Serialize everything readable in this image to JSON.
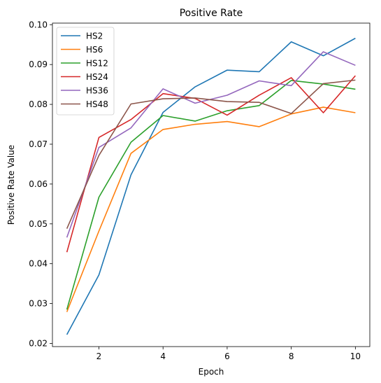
{
  "chart_data": {
    "type": "line",
    "title": "Positive Rate",
    "xlabel": "Epoch",
    "ylabel": "Positive Rate Value",
    "x": [
      1,
      2,
      3,
      4,
      5,
      6,
      7,
      8,
      9,
      10
    ],
    "xlim": [
      0.55,
      10.45
    ],
    "ylim": [
      0.0192,
      0.1004
    ],
    "xticks": [
      2,
      4,
      6,
      8,
      10
    ],
    "yticks": [
      0.02,
      0.03,
      0.04,
      0.05,
      0.06,
      0.07,
      0.08,
      0.09,
      0.1
    ],
    "ytick_labels": [
      "0.02",
      "0.03",
      "0.04",
      "0.05",
      "0.06",
      "0.07",
      "0.08",
      "0.09",
      "0.10"
    ],
    "grid": false,
    "legend": "top-left",
    "series": [
      {
        "name": "HS2",
        "color": "#1f77b4",
        "values": [
          0.0222,
          0.0372,
          0.0623,
          0.078,
          0.0844,
          0.0886,
          0.0882,
          0.0957,
          0.0922,
          0.0966
        ]
      },
      {
        "name": "HS6",
        "color": "#ff7f0e",
        "values": [
          0.0279,
          0.0482,
          0.0677,
          0.0737,
          0.075,
          0.0757,
          0.0744,
          0.0776,
          0.0793,
          0.0779
        ]
      },
      {
        "name": "HS12",
        "color": "#2ca02c",
        "values": [
          0.0285,
          0.0567,
          0.0705,
          0.0772,
          0.0758,
          0.0784,
          0.0797,
          0.086,
          0.0851,
          0.0838
        ]
      },
      {
        "name": "HS24",
        "color": "#d62728",
        "values": [
          0.0429,
          0.0717,
          0.0762,
          0.0827,
          0.0815,
          0.0773,
          0.0823,
          0.0867,
          0.0779,
          0.0872
        ]
      },
      {
        "name": "HS36",
        "color": "#9467bd",
        "values": [
          0.0466,
          0.0692,
          0.0741,
          0.0839,
          0.0803,
          0.0823,
          0.0859,
          0.0847,
          0.0932,
          0.0898
        ]
      },
      {
        "name": "HS48",
        "color": "#8c564b",
        "values": [
          0.0488,
          0.0672,
          0.0801,
          0.0814,
          0.0816,
          0.0807,
          0.0805,
          0.0777,
          0.0852,
          0.0861
        ]
      }
    ]
  }
}
